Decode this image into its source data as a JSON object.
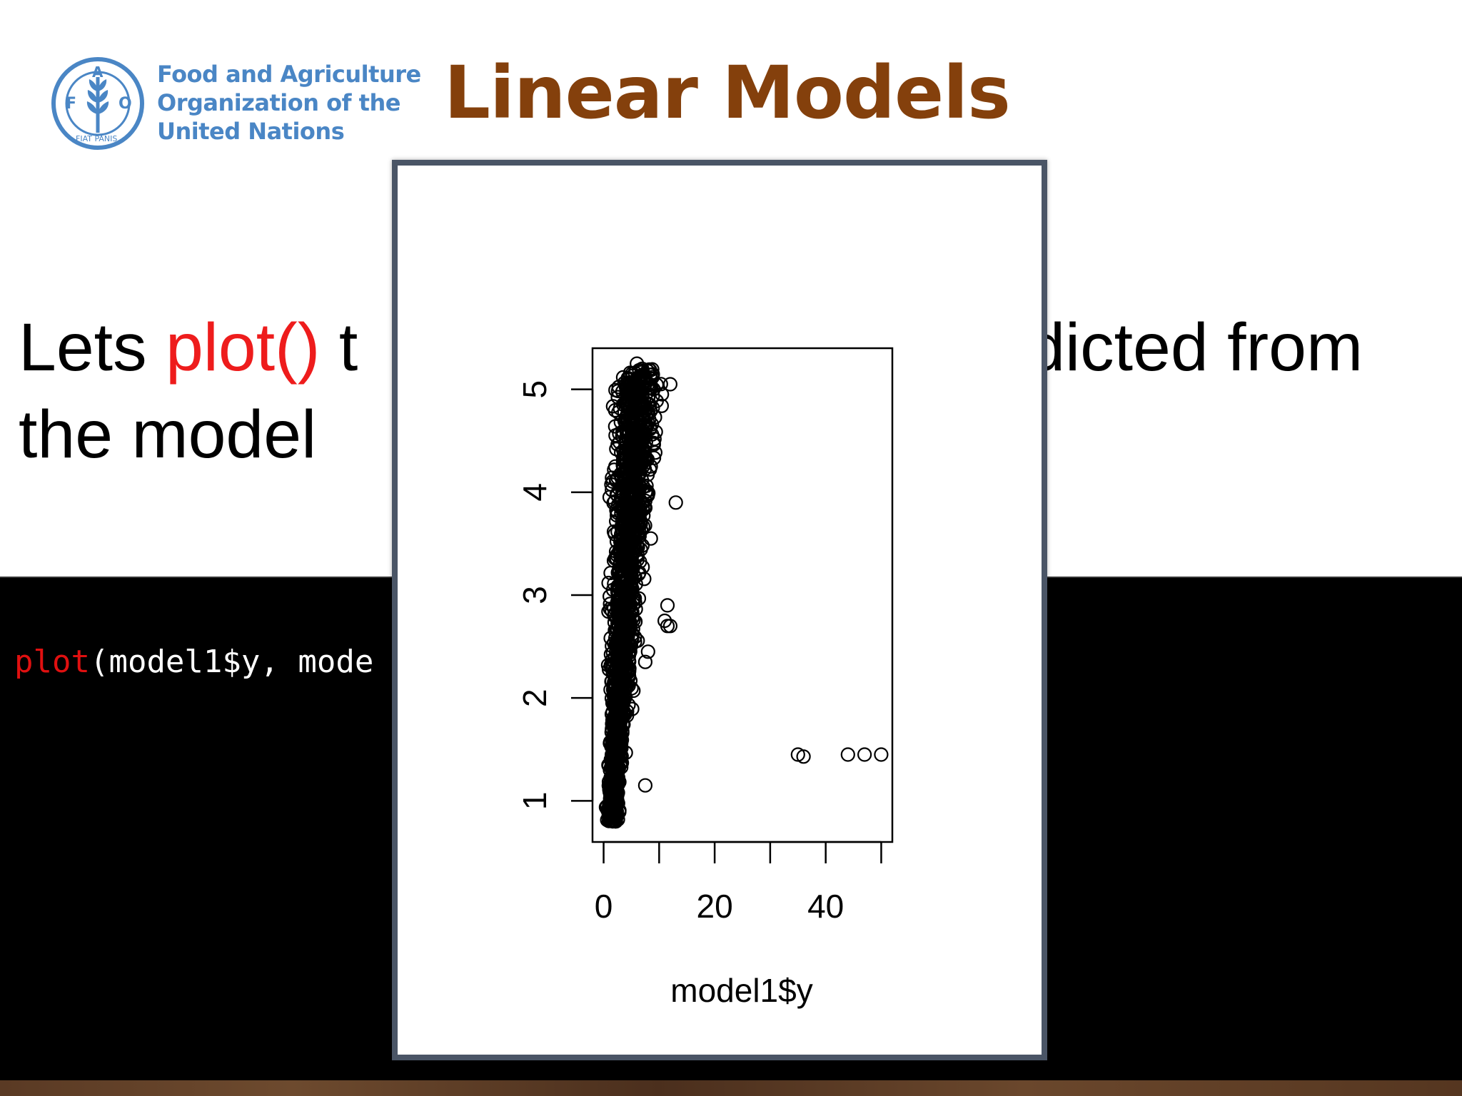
{
  "header": {
    "logo_lines": [
      "Food and Agriculture",
      "Organization of the",
      "United Nations"
    ],
    "emblem_letters": {
      "left": "F",
      "top": "A",
      "right": "O",
      "motto": "FIAT PANIS"
    },
    "title": "Linear Models"
  },
  "body": {
    "part1": "Lets ",
    "keyword": "plot()",
    "part2": " t",
    "hidden_marker": "",
    "part3": "dicted from",
    "part4": "the model"
  },
  "code": {
    "fn": "plot",
    "args": "(model1$y, mode"
  },
  "colors": {
    "title": "#84400c",
    "logo": "#4a86c5",
    "keyword": "#ee1c1c",
    "code_keyword": "#e01010",
    "popup_border": "#4a5566"
  },
  "chart_data": {
    "type": "scatter",
    "xlabel": "model1$y",
    "ylabel": "",
    "xlim": [
      -2,
      52
    ],
    "ylim": [
      0.6,
      5.4
    ],
    "x_ticks": [
      0,
      10,
      20,
      30,
      40,
      50
    ],
    "x_tick_labels": [
      "0",
      "",
      "20",
      "",
      "40",
      ""
    ],
    "y_ticks": [
      1,
      2,
      3,
      4,
      5
    ],
    "y_tick_labels": [
      "1",
      "2",
      "3",
      "4",
      "5"
    ],
    "grid": false,
    "marker": "open-circle",
    "outliers": [
      {
        "x": 12.0,
        "y": 5.05
      },
      {
        "x": 13.0,
        "y": 3.9
      },
      {
        "x": 11.5,
        "y": 2.9
      },
      {
        "x": 11.0,
        "y": 2.75
      },
      {
        "x": 12.0,
        "y": 2.7
      },
      {
        "x": 11.5,
        "y": 2.7
      },
      {
        "x": 8.0,
        "y": 2.45
      },
      {
        "x": 7.5,
        "y": 2.35
      },
      {
        "x": 35.0,
        "y": 1.45
      },
      {
        "x": 36.0,
        "y": 1.43
      },
      {
        "x": 44.0,
        "y": 1.45
      },
      {
        "x": 47.0,
        "y": 1.45
      },
      {
        "x": 50.0,
        "y": 1.45
      },
      {
        "x": 6.0,
        "y": 5.25
      },
      {
        "x": 7.0,
        "y": 4.95
      },
      {
        "x": 8.5,
        "y": 3.55
      },
      {
        "x": 7.5,
        "y": 1.15
      }
    ],
    "dense_cluster": {
      "x_range": [
        0,
        8
      ],
      "y_range": [
        0.8,
        5.2
      ],
      "approx_points": 1500
    }
  }
}
